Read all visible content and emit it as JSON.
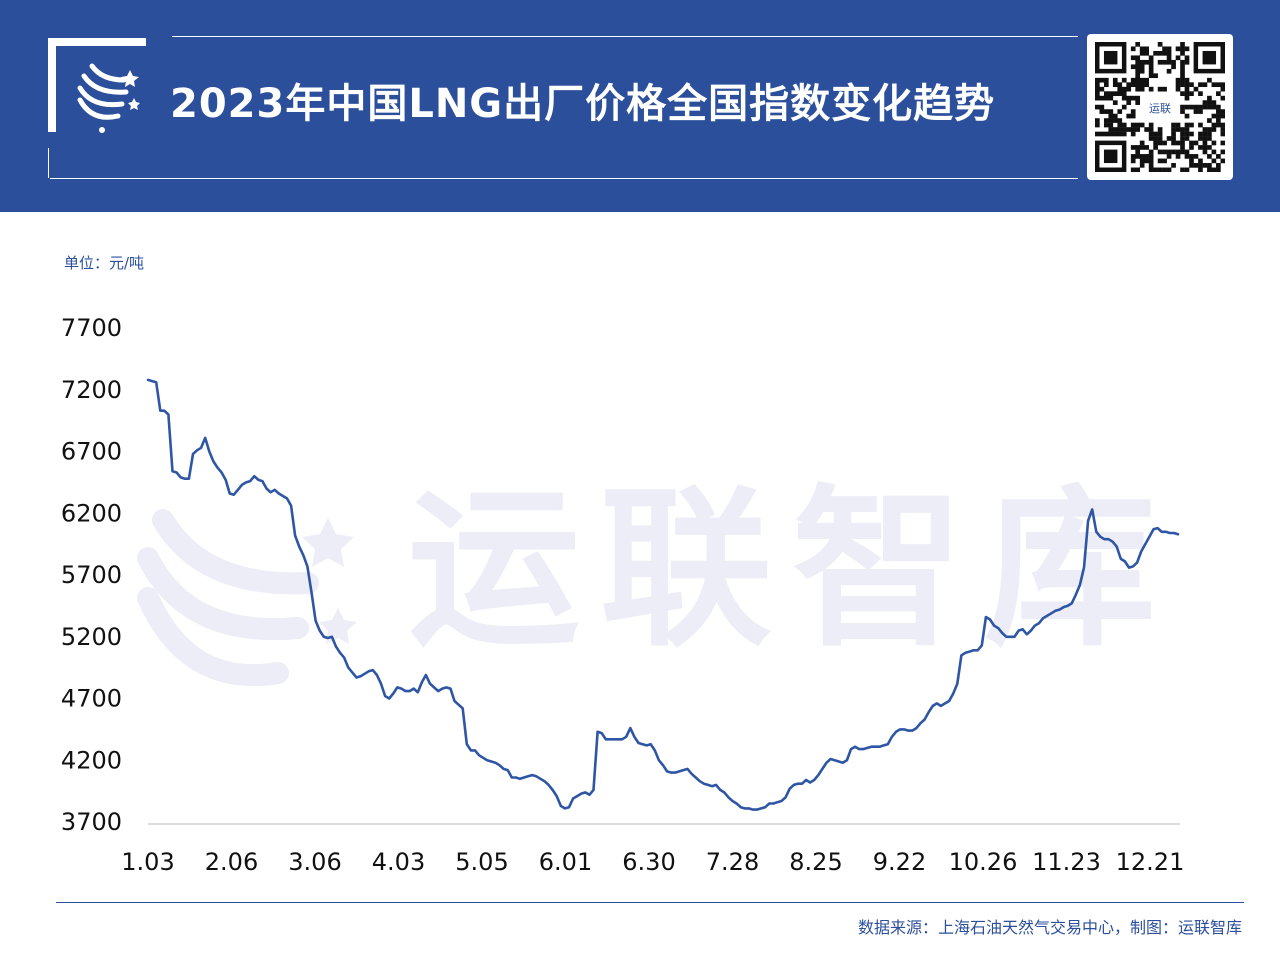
{
  "header": {
    "title": "2023年中国LNG出厂价格全国指数变化趋势",
    "qr_label": "运联",
    "background_color": "#2b4f9b"
  },
  "watermark": {
    "text": "运联智库"
  },
  "unit_label": "单位：元/吨",
  "footer": {
    "source": "数据来源：上海石油天然气交易中心，制图：运联智库"
  },
  "chart_data": {
    "type": "line",
    "title": "2023年中国LNG出厂价格全国指数变化趋势",
    "xlabel": "",
    "ylabel": "单位：元/吨",
    "ylim": [
      3700,
      7700
    ],
    "yticks": [
      7700,
      7200,
      6700,
      6200,
      5700,
      5200,
      4700,
      4200,
      3700
    ],
    "xticks": [
      "1.03",
      "2.06",
      "3.06",
      "4.03",
      "5.05",
      "6.01",
      "6.30",
      "7.28",
      "8.25",
      "9.22",
      "10.26",
      "11.23",
      "12.21"
    ],
    "grid": false,
    "line_color": "#2e56a5",
    "series": [
      {
        "name": "",
        "values": [
          7280,
          7270,
          7260,
          7030,
          7030,
          7000,
          6540,
          6530,
          6490,
          6480,
          6480,
          6680,
          6710,
          6730,
          6810,
          6700,
          6620,
          6570,
          6530,
          6470,
          6360,
          6350,
          6390,
          6430,
          6450,
          6460,
          6500,
          6470,
          6460,
          6400,
          6370,
          6390,
          6360,
          6340,
          6320,
          6260,
          6020,
          5930,
          5860,
          5770,
          5560,
          5330,
          5250,
          5200,
          5190,
          5200,
          5120,
          5070,
          5030,
          4950,
          4910,
          4870,
          4880,
          4900,
          4920,
          4930,
          4890,
          4820,
          4720,
          4700,
          4740,
          4790,
          4780,
          4760,
          4760,
          4780,
          4750,
          4830,
          4890,
          4820,
          4790,
          4760,
          4780,
          4790,
          4780,
          4680,
          4650,
          4620,
          4330,
          4280,
          4280,
          4240,
          4220,
          4200,
          4190,
          4180,
          4160,
          4130,
          4120,
          4060,
          4060,
          4050,
          4060,
          4070,
          4080,
          4070,
          4050,
          4030,
          4000,
          3960,
          3910,
          3830,
          3810,
          3820,
          3890,
          3910,
          3930,
          3940,
          3920,
          3960,
          4430,
          4420,
          4370,
          4370,
          4370,
          4370,
          4370,
          4390,
          4460,
          4390,
          4340,
          4330,
          4320,
          4330,
          4280,
          4200,
          4160,
          4110,
          4100,
          4100,
          4110,
          4120,
          4130,
          4090,
          4060,
          4030,
          4010,
          4000,
          3990,
          4000,
          3960,
          3940,
          3900,
          3870,
          3850,
          3820,
          3810,
          3810,
          3800,
          3800,
          3810,
          3820,
          3850,
          3850,
          3860,
          3870,
          3900,
          3970,
          4000,
          4010,
          4010,
          4040,
          4020,
          4040,
          4080,
          4130,
          4180,
          4210,
          4200,
          4190,
          4180,
          4200,
          4290,
          4310,
          4290,
          4290,
          4300,
          4310,
          4310,
          4310,
          4320,
          4330,
          4390,
          4430,
          4450,
          4450,
          4440,
          4440,
          4460,
          4500,
          4530,
          4590,
          4640,
          4660,
          4640,
          4660,
          4680,
          4740,
          4820,
          5050,
          5070,
          5080,
          5090,
          5090,
          5130,
          5360,
          5340,
          5290,
          5270,
          5230,
          5200,
          5200,
          5200,
          5250,
          5260,
          5220,
          5250,
          5290,
          5310,
          5350,
          5370,
          5390,
          5410,
          5420,
          5440,
          5450,
          5470,
          5540,
          5620,
          5760,
          6140,
          6230,
          6050,
          6010,
          5990,
          5990,
          5970,
          5930,
          5830,
          5810,
          5760,
          5770,
          5800,
          5890,
          5950,
          6010,
          6070,
          6080,
          6050,
          6050,
          6040,
          6040,
          6030
        ]
      }
    ]
  }
}
